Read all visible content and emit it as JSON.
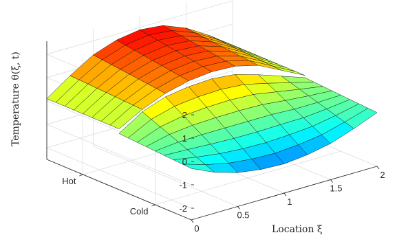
{
  "chart_data": {
    "type": "surface",
    "xlabel": "Location ξ",
    "ylabel": "",
    "zlabel": "Temperature θ(ξ, t)",
    "x_ticks": [
      "0",
      "0.5",
      "1",
      "1.5",
      "2"
    ],
    "y_ticks": [
      "Cold",
      "Hot"
    ],
    "z_ticks": [
      "-2",
      "-1",
      "0",
      "1",
      "2"
    ],
    "xlim": [
      0,
      2
    ],
    "zlim": [
      -2.5,
      2.5
    ],
    "colormap": "jet",
    "grid": true,
    "surfaces": [
      {
        "side": "Hot",
        "x": [
          0,
          0.25,
          0.5,
          0.75,
          1.0,
          1.25,
          1.5,
          1.75,
          2.0
        ],
        "z_at_front_edge": [
          0.1,
          0.65,
          1.05,
          1.3,
          1.4,
          1.35,
          1.1,
          0.6,
          0.1
        ],
        "z_at_back_edge": [
          0.1,
          0.8,
          1.4,
          1.75,
          1.9,
          1.8,
          1.4,
          0.8,
          0.1
        ]
      },
      {
        "side": "Cold",
        "x": [
          0,
          0.25,
          0.5,
          0.75,
          1.0,
          1.25,
          1.5,
          1.75,
          2.0
        ],
        "z_at_front_edge": [
          -0.3,
          -0.75,
          -1.05,
          -1.2,
          -1.25,
          -1.15,
          -0.95,
          -0.6,
          -0.2
        ],
        "z_at_back_edge": [
          -0.1,
          0.55,
          0.9,
          1.05,
          1.1,
          1.0,
          0.7,
          0.35,
          0.0
        ]
      }
    ]
  }
}
